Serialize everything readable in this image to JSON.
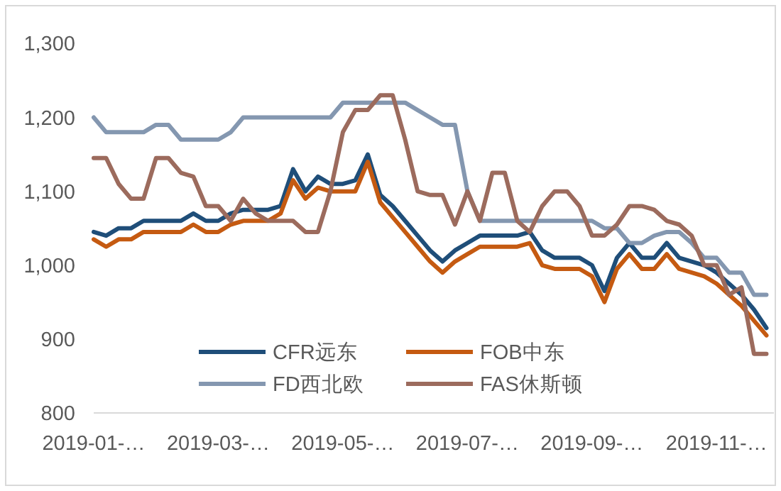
{
  "chart_data": {
    "type": "line",
    "categories": [
      "2019-01-…",
      null,
      null,
      null,
      null,
      null,
      null,
      null,
      null,
      null,
      "2019-03-…",
      null,
      null,
      null,
      null,
      null,
      null,
      null,
      null,
      null,
      "2019-05-…",
      null,
      null,
      null,
      null,
      null,
      null,
      null,
      null,
      null,
      "2019-07-…",
      null,
      null,
      null,
      null,
      null,
      null,
      null,
      null,
      null,
      "2019-09-…",
      null,
      null,
      null,
      null,
      null,
      null,
      null,
      null,
      null,
      "2019-11-…",
      null,
      null,
      null,
      null
    ],
    "ylim": [
      800,
      1300
    ],
    "yticks": [
      800,
      900,
      {
        "value": 1000,
        "label": "1,000"
      },
      {
        "value": 1100,
        "label": "1,100"
      },
      {
        "value": 1200,
        "label": "1,200"
      },
      {
        "value": 1300,
        "label": "1,300"
      }
    ],
    "grid": false,
    "legend": "bottom",
    "marker": "none",
    "line_style": "solid",
    "series": [
      {
        "name": "CFR远东",
        "color": "#1f4e79",
        "values": [
          1045,
          1040,
          1050,
          1050,
          1060,
          1060,
          1060,
          1060,
          1070,
          1060,
          1060,
          1070,
          1075,
          1075,
          1075,
          1080,
          1130,
          1100,
          1120,
          1110,
          1110,
          1115,
          1150,
          1095,
          1080,
          1060,
          1040,
          1020,
          1005,
          1020,
          1030,
          1040,
          1040,
          1040,
          1040,
          1045,
          1020,
          1010,
          1010,
          1010,
          1000,
          965,
          1010,
          1030,
          1010,
          1010,
          1030,
          1010,
          1005,
          1000,
          990,
          975,
          960,
          940,
          915
        ]
      },
      {
        "name": "FOB中东",
        "color": "#c55a11",
        "values": [
          1035,
          1025,
          1035,
          1035,
          1045,
          1045,
          1045,
          1045,
          1055,
          1045,
          1045,
          1055,
          1060,
          1060,
          1060,
          1070,
          1115,
          1090,
          1105,
          1100,
          1100,
          1100,
          1140,
          1085,
          1065,
          1045,
          1025,
          1005,
          990,
          1005,
          1015,
          1025,
          1025,
          1025,
          1025,
          1030,
          1000,
          995,
          995,
          995,
          985,
          950,
          995,
          1015,
          995,
          995,
          1015,
          995,
          990,
          985,
          975,
          960,
          945,
          925,
          905
        ]
      },
      {
        "name": "FD西北欧",
        "color": "#8497b0",
        "values": [
          1200,
          1180,
          1180,
          1180,
          1180,
          1190,
          1190,
          1170,
          1170,
          1170,
          1170,
          1180,
          1200,
          1200,
          1200,
          1200,
          1200,
          1200,
          1200,
          1200,
          1220,
          1220,
          1220,
          1220,
          1220,
          1220,
          1210,
          1200,
          1190,
          1190,
          1100,
          1060,
          1060,
          1060,
          1060,
          1060,
          1060,
          1060,
          1060,
          1060,
          1060,
          1050,
          1050,
          1030,
          1030,
          1040,
          1045,
          1045,
          1030,
          1010,
          1010,
          990,
          990,
          960,
          960
        ]
      },
      {
        "name": "FAS休斯顿",
        "color": "#9c6b5d",
        "values": [
          1145,
          1145,
          1110,
          1090,
          1090,
          1145,
          1145,
          1125,
          1120,
          1080,
          1080,
          1060,
          1090,
          1070,
          1060,
          1060,
          1060,
          1045,
          1045,
          1100,
          1180,
          1210,
          1210,
          1230,
          1230,
          1170,
          1100,
          1095,
          1095,
          1055,
          1100,
          1060,
          1125,
          1125,
          1060,
          1045,
          1080,
          1100,
          1100,
          1080,
          1040,
          1040,
          1055,
          1080,
          1080,
          1075,
          1060,
          1055,
          1040,
          1000,
          1000,
          960,
          970,
          880,
          880
        ]
      }
    ]
  }
}
